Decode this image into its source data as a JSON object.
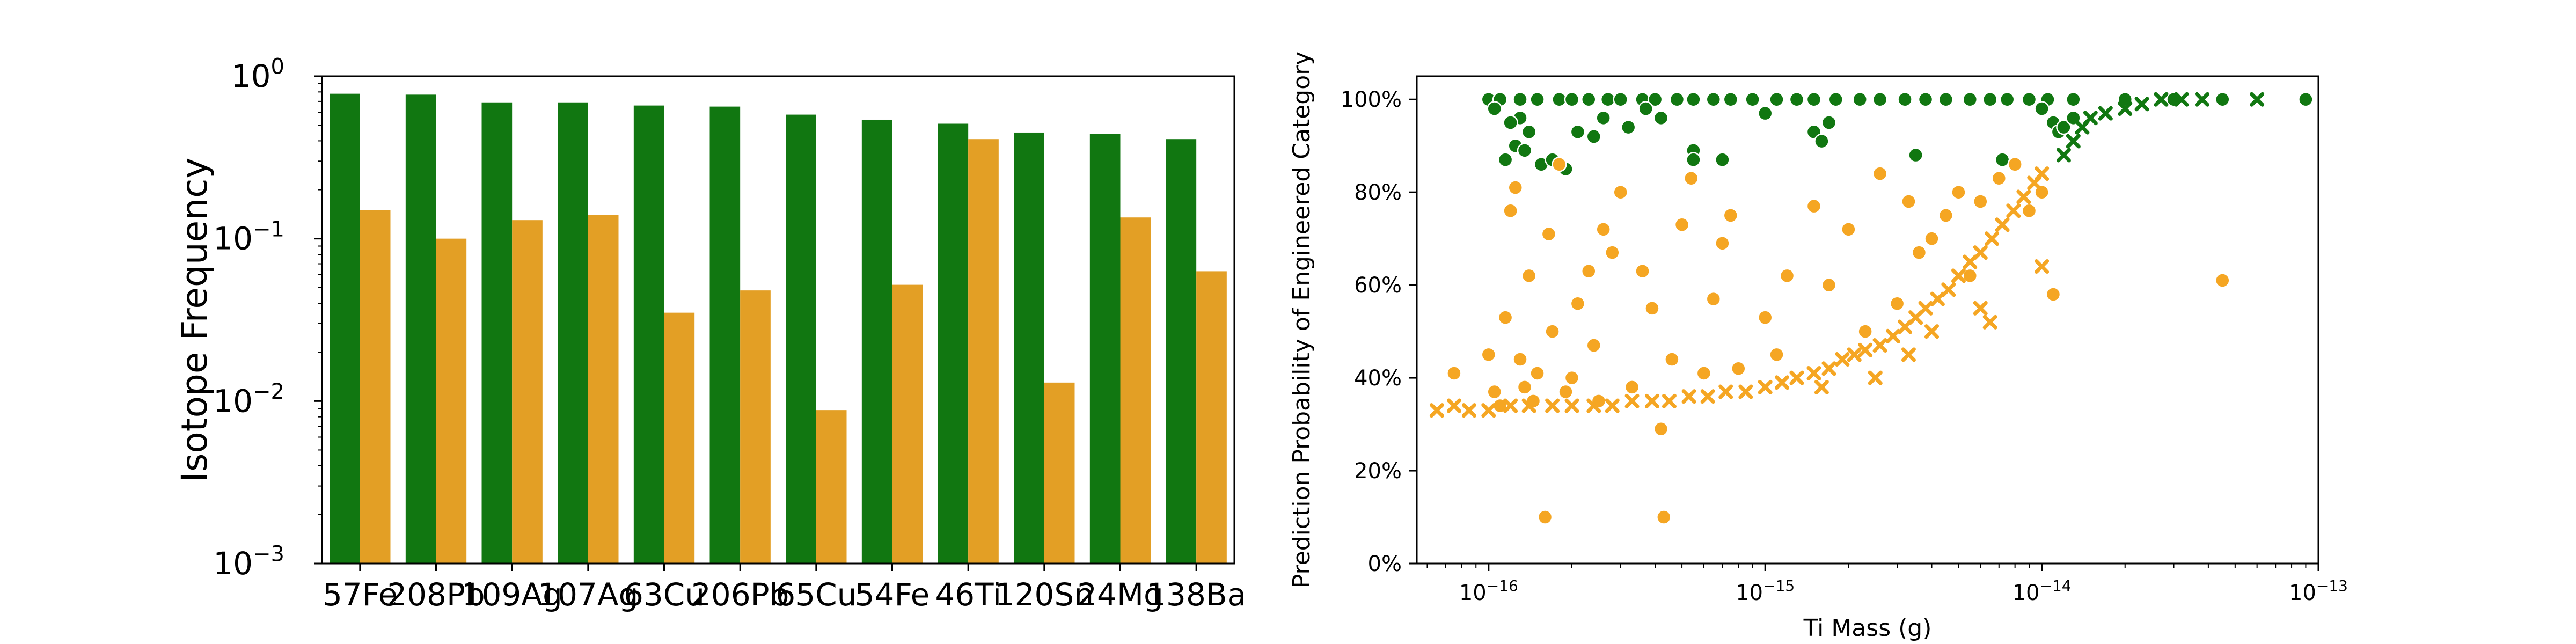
{
  "chart_data": [
    {
      "type": "bar",
      "title": "",
      "xlabel": "",
      "ylabel": "Isotope Frequency",
      "yscale": "log",
      "ylim": [
        0.001,
        1
      ],
      "y_tick_labels": [
        "10^-3",
        "10^-2",
        "10^-1",
        "10^0"
      ],
      "categories": [
        "57Fe",
        "208Pb",
        "109Ag",
        "107Ag",
        "63Cu",
        "206Pb",
        "65Cu",
        "54Fe",
        "46Ti",
        "120Sn",
        "24Mg",
        "138Ba"
      ],
      "series": [
        {
          "color": "#117711",
          "values": [
            0.78,
            0.77,
            0.69,
            0.69,
            0.66,
            0.65,
            0.58,
            0.54,
            0.51,
            0.45,
            0.44,
            0.41
          ]
        },
        {
          "color": "#e39f25",
          "values": [
            0.15,
            0.1,
            0.13,
            0.14,
            0.035,
            0.048,
            0.0088,
            0.052,
            0.41,
            0.013,
            0.135,
            0.063
          ]
        }
      ]
    },
    {
      "type": "scatter",
      "title": "",
      "xlabel": "Ti Mass (g)",
      "ylabel": "Prediction Probability of Engineered Category",
      "xscale": "log",
      "xlim": [
        5.5e-17,
        1e-13
      ],
      "ylim": [
        0,
        1.05
      ],
      "x_tick_labels": [
        "10^-16",
        "10^-15",
        "10^-14",
        "10^-13"
      ],
      "y_tick_labels": [
        "0%",
        "20%",
        "40%",
        "60%",
        "80%",
        "100%"
      ],
      "legend": "none",
      "series": [
        {
          "marker": "circle",
          "color": "#117711",
          "points": [
            [
              1e-16,
              1
            ],
            [
              1.1e-16,
              1
            ],
            [
              1.3e-16,
              1
            ],
            [
              1.5e-16,
              1
            ],
            [
              1.8e-16,
              1
            ],
            [
              2e-16,
              1
            ],
            [
              2.3e-16,
              1
            ],
            [
              2.7e-16,
              1
            ],
            [
              3e-16,
              1
            ],
            [
              3.6e-16,
              1
            ],
            [
              4e-16,
              1
            ],
            [
              4.8e-16,
              1
            ],
            [
              5.5e-16,
              1
            ],
            [
              6.5e-16,
              1
            ],
            [
              7.5e-16,
              1
            ],
            [
              9e-16,
              1
            ],
            [
              1.1e-15,
              1
            ],
            [
              1.3e-15,
              1
            ],
            [
              1.5e-15,
              1
            ],
            [
              1.8e-15,
              1
            ],
            [
              2.2e-15,
              1
            ],
            [
              2.6e-15,
              1
            ],
            [
              3.2e-15,
              1
            ],
            [
              3.8e-15,
              1
            ],
            [
              4.5e-15,
              1
            ],
            [
              5.5e-15,
              1
            ],
            [
              6.5e-15,
              1
            ],
            [
              7.5e-15,
              1
            ],
            [
              9e-15,
              1
            ],
            [
              1.05e-14,
              1
            ],
            [
              1.3e-14,
              1
            ],
            [
              2e-14,
              1
            ],
            [
              3e-14,
              1
            ],
            [
              4.5e-14,
              1
            ],
            [
              9e-14,
              1
            ],
            [
              1.05e-16,
              0.98
            ],
            [
              1.3e-16,
              0.96
            ],
            [
              1.2e-16,
              0.95
            ],
            [
              1.4e-16,
              0.93
            ],
            [
              1.15e-16,
              0.87
            ],
            [
              1.25e-16,
              0.9
            ],
            [
              1.35e-16,
              0.89
            ],
            [
              1.55e-16,
              0.86
            ],
            [
              1.7e-16,
              0.87
            ],
            [
              1.9e-16,
              0.85
            ],
            [
              2.1e-16,
              0.93
            ],
            [
              2.4e-16,
              0.92
            ],
            [
              2.6e-16,
              0.96
            ],
            [
              3.2e-16,
              0.94
            ],
            [
              3.7e-16,
              0.98
            ],
            [
              4.2e-16,
              0.96
            ],
            [
              5.5e-16,
              0.89
            ],
            [
              5.5e-16,
              0.87
            ],
            [
              7e-16,
              0.87
            ],
            [
              1e-15,
              0.97
            ],
            [
              1.5e-15,
              0.93
            ],
            [
              1.6e-15,
              0.91
            ],
            [
              1.7e-15,
              0.95
            ],
            [
              3.5e-15,
              0.88
            ],
            [
              7.2e-15,
              0.87
            ],
            [
              1e-14,
              0.98
            ],
            [
              1.1e-14,
              0.95
            ],
            [
              1.15e-14,
              0.93
            ],
            [
              1.2e-14,
              0.94
            ],
            [
              1.3e-14,
              0.96
            ]
          ]
        },
        {
          "marker": "circle",
          "color": "#f5a623",
          "points": [
            [
              7.5e-17,
              0.41
            ],
            [
              1e-16,
              0.45
            ],
            [
              1.05e-16,
              0.37
            ],
            [
              1.1e-16,
              0.34
            ],
            [
              1.15e-16,
              0.53
            ],
            [
              1.2e-16,
              0.76
            ],
            [
              1.25e-16,
              0.81
            ],
            [
              1.3e-16,
              0.44
            ],
            [
              1.35e-16,
              0.38
            ],
            [
              1.4e-16,
              0.62
            ],
            [
              1.45e-16,
              0.35
            ],
            [
              1.5e-16,
              0.41
            ],
            [
              1.6e-16,
              0.1
            ],
            [
              1.65e-16,
              0.71
            ],
            [
              1.7e-16,
              0.5
            ],
            [
              1.8e-16,
              0.86
            ],
            [
              1.9e-16,
              0.37
            ],
            [
              2e-16,
              0.4
            ],
            [
              2.1e-16,
              0.56
            ],
            [
              2.3e-16,
              0.63
            ],
            [
              2.4e-16,
              0.47
            ],
            [
              2.5e-16,
              0.35
            ],
            [
              2.6e-16,
              0.72
            ],
            [
              2.8e-16,
              0.67
            ],
            [
              3e-16,
              0.8
            ],
            [
              3.3e-16,
              0.38
            ],
            [
              3.6e-16,
              0.63
            ],
            [
              3.9e-16,
              0.55
            ],
            [
              4.2e-16,
              0.29
            ],
            [
              4.3e-16,
              0.1
            ],
            [
              4.6e-16,
              0.44
            ],
            [
              5e-16,
              0.73
            ],
            [
              5.4e-16,
              0.83
            ],
            [
              6e-16,
              0.41
            ],
            [
              6.5e-16,
              0.57
            ],
            [
              7e-16,
              0.69
            ],
            [
              7.5e-16,
              0.75
            ],
            [
              8e-16,
              0.42
            ],
            [
              1e-15,
              0.53
            ],
            [
              1.1e-15,
              0.45
            ],
            [
              1.2e-15,
              0.62
            ],
            [
              1.5e-15,
              0.77
            ],
            [
              1.7e-15,
              0.6
            ],
            [
              2e-15,
              0.72
            ],
            [
              2.3e-15,
              0.5
            ],
            [
              2.6e-15,
              0.84
            ],
            [
              3e-15,
              0.56
            ],
            [
              3.3e-15,
              0.78
            ],
            [
              3.6e-15,
              0.67
            ],
            [
              4e-15,
              0.7
            ],
            [
              4.5e-15,
              0.75
            ],
            [
              5e-15,
              0.8
            ],
            [
              5.5e-15,
              0.62
            ],
            [
              6e-15,
              0.78
            ],
            [
              7e-15,
              0.83
            ],
            [
              8e-15,
              0.86
            ],
            [
              9e-15,
              0.76
            ],
            [
              1e-14,
              0.8
            ],
            [
              1.1e-14,
              0.58
            ],
            [
              4.5e-14,
              0.61
            ]
          ]
        },
        {
          "marker": "x",
          "color": "#f5a623",
          "points": [
            [
              6.5e-17,
              0.33
            ],
            [
              7.5e-17,
              0.34
            ],
            [
              8.5e-17,
              0.33
            ],
            [
              1e-16,
              0.33
            ],
            [
              1.2e-16,
              0.34
            ],
            [
              1.4e-16,
              0.34
            ],
            [
              1.7e-16,
              0.34
            ],
            [
              2e-16,
              0.34
            ],
            [
              2.4e-16,
              0.34
            ],
            [
              2.8e-16,
              0.34
            ],
            [
              3.3e-16,
              0.35
            ],
            [
              3.9e-16,
              0.35
            ],
            [
              4.5e-16,
              0.35
            ],
            [
              5.3e-16,
              0.36
            ],
            [
              6.2e-16,
              0.36
            ],
            [
              7.2e-16,
              0.37
            ],
            [
              8.5e-16,
              0.37
            ],
            [
              1e-15,
              0.38
            ],
            [
              1.15e-15,
              0.39
            ],
            [
              1.3e-15,
              0.4
            ],
            [
              1.5e-15,
              0.41
            ],
            [
              1.7e-15,
              0.42
            ],
            [
              1.9e-15,
              0.44
            ],
            [
              2.1e-15,
              0.45
            ],
            [
              2.3e-15,
              0.46
            ],
            [
              2.6e-15,
              0.47
            ],
            [
              2.9e-15,
              0.49
            ],
            [
              3.2e-15,
              0.51
            ],
            [
              3.5e-15,
              0.53
            ],
            [
              3.8e-15,
              0.55
            ],
            [
              4.2e-15,
              0.57
            ],
            [
              4.6e-15,
              0.59
            ],
            [
              5e-15,
              0.62
            ],
            [
              5.5e-15,
              0.65
            ],
            [
              6e-15,
              0.67
            ],
            [
              6.6e-15,
              0.7
            ],
            [
              7.2e-15,
              0.73
            ],
            [
              7.9e-15,
              0.76
            ],
            [
              8.6e-15,
              0.79
            ],
            [
              9.4e-15,
              0.82
            ],
            [
              1e-14,
              0.84
            ],
            [
              3.3e-15,
              0.45
            ],
            [
              2.5e-15,
              0.4
            ],
            [
              1.6e-15,
              0.38
            ],
            [
              4e-15,
              0.5
            ],
            [
              6e-15,
              0.55
            ],
            [
              6.5e-15,
              0.52
            ],
            [
              1e-14,
              0.64
            ]
          ]
        },
        {
          "marker": "x",
          "color": "#117711",
          "points": [
            [
              1.2e-14,
              0.88
            ],
            [
              1.3e-14,
              0.91
            ],
            [
              1.4e-14,
              0.94
            ],
            [
              1.5e-14,
              0.96
            ],
            [
              1.7e-14,
              0.97
            ],
            [
              2e-14,
              0.98
            ],
            [
              2.3e-14,
              0.99
            ],
            [
              2.7e-14,
              1
            ],
            [
              3.2e-14,
              1
            ],
            [
              3.8e-14,
              1
            ],
            [
              6e-14,
              1
            ]
          ]
        }
      ]
    }
  ]
}
